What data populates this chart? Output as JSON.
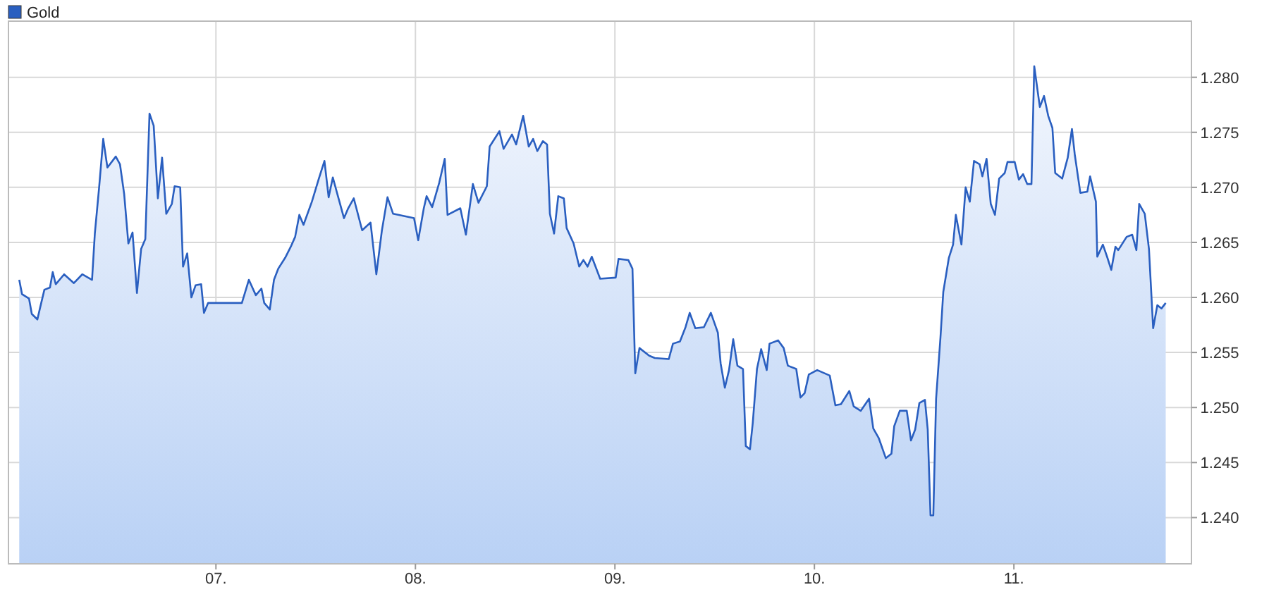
{
  "chart_data": {
    "type": "area",
    "legend": "top left",
    "grid": true,
    "xlim": [
      5.96,
      11.89
    ],
    "ylim": [
      1.2358,
      1.2851
    ],
    "xticks": [
      {
        "value": 7,
        "label": "07."
      },
      {
        "value": 8,
        "label": "08."
      },
      {
        "value": 9,
        "label": "09."
      },
      {
        "value": 10,
        "label": "10."
      },
      {
        "value": 11,
        "label": "11."
      }
    ],
    "yticks": [
      {
        "value": 1.24,
        "label": "1.240"
      },
      {
        "value": 1.245,
        "label": "1.245"
      },
      {
        "value": 1.25,
        "label": "1.250"
      },
      {
        "value": 1.255,
        "label": "1.255"
      },
      {
        "value": 1.26,
        "label": "1.260"
      },
      {
        "value": 1.265,
        "label": "1.265"
      },
      {
        "value": 1.27,
        "label": "1.270"
      },
      {
        "value": 1.275,
        "label": "1.275"
      },
      {
        "value": 1.28,
        "label": "1.280"
      }
    ],
    "series": [
      {
        "name": "Gold",
        "color": "#2a5fc0",
        "x": [
          6.014,
          6.028,
          6.063,
          6.077,
          6.105,
          6.119,
          6.14,
          6.168,
          6.182,
          6.197,
          6.239,
          6.288,
          6.33,
          6.379,
          6.393,
          6.414,
          6.435,
          6.456,
          6.498,
          6.519,
          6.54,
          6.561,
          6.582,
          6.604,
          6.625,
          6.646,
          6.667,
          6.688,
          6.709,
          6.73,
          6.751,
          6.779,
          6.793,
          6.821,
          6.835,
          6.856,
          6.877,
          6.898,
          6.926,
          6.94,
          6.961,
          7.13,
          7.165,
          7.2,
          7.228,
          7.242,
          7.27,
          7.291,
          7.312,
          7.347,
          7.375,
          7.397,
          7.418,
          7.439,
          7.481,
          7.516,
          7.544,
          7.565,
          7.586,
          7.607,
          7.642,
          7.663,
          7.691,
          7.733,
          7.775,
          7.804,
          7.832,
          7.86,
          7.888,
          7.993,
          8.014,
          8.042,
          8.056,
          8.084,
          8.119,
          8.147,
          8.161,
          8.225,
          8.253,
          8.288,
          8.316,
          8.358,
          8.372,
          8.421,
          8.442,
          8.484,
          8.505,
          8.54,
          8.568,
          8.59,
          8.611,
          8.639,
          8.66,
          8.674,
          8.695,
          8.716,
          8.744,
          8.758,
          8.793,
          8.821,
          8.842,
          8.863,
          8.884,
          8.926,
          9.004,
          9.018,
          9.067,
          9.088,
          9.102,
          9.123,
          9.172,
          9.2,
          9.27,
          9.291,
          9.326,
          9.354,
          9.375,
          9.403,
          9.446,
          9.481,
          9.516,
          9.53,
          9.551,
          9.572,
          9.593,
          9.614,
          9.642,
          9.656,
          9.677,
          9.691,
          9.712,
          9.733,
          9.761,
          9.775,
          9.818,
          9.846,
          9.867,
          9.909,
          9.93,
          9.951,
          9.972,
          10.014,
          10.077,
          10.105,
          10.133,
          10.175,
          10.197,
          10.232,
          10.274,
          10.295,
          10.323,
          10.358,
          10.386,
          10.4,
          10.428,
          10.463,
          10.484,
          10.505,
          10.526,
          10.554,
          10.568,
          10.582,
          10.596,
          10.61,
          10.632,
          10.646,
          10.674,
          10.695,
          10.709,
          10.737,
          10.758,
          10.779,
          10.8,
          10.828,
          10.842,
          10.863,
          10.884,
          10.905,
          10.926,
          10.954,
          10.968,
          11.004,
          11.025,
          11.046,
          11.067,
          11.088,
          11.102,
          11.13,
          11.151,
          11.172,
          11.193,
          11.207,
          11.242,
          11.27,
          11.291,
          11.305,
          11.333,
          11.368,
          11.382,
          11.411,
          11.418,
          11.446,
          11.467,
          11.488,
          11.509,
          11.523,
          11.565,
          11.593,
          11.614,
          11.628,
          11.656,
          11.677,
          11.698,
          11.719,
          11.74,
          11.761
        ],
        "values": [
          1.2616,
          1.2603,
          1.2599,
          1.2585,
          1.258,
          1.2591,
          1.2607,
          1.2609,
          1.2623,
          1.2612,
          1.2621,
          1.2613,
          1.2621,
          1.2616,
          1.2658,
          1.2699,
          1.2744,
          1.2718,
          1.2728,
          1.2721,
          1.2694,
          1.2649,
          1.2659,
          1.2604,
          1.2644,
          1.2653,
          1.2767,
          1.2756,
          1.269,
          1.2727,
          1.2676,
          1.2685,
          1.2701,
          1.27,
          1.2628,
          1.264,
          1.26,
          1.2611,
          1.2612,
          1.2586,
          1.2595,
          1.2595,
          1.2616,
          1.2602,
          1.2608,
          1.2595,
          1.2589,
          1.2616,
          1.2626,
          1.2636,
          1.2646,
          1.2655,
          1.2675,
          1.2666,
          1.2687,
          1.2708,
          1.2724,
          1.2691,
          1.2709,
          1.2695,
          1.2672,
          1.2681,
          1.269,
          1.2661,
          1.2668,
          1.2621,
          1.2661,
          1.2691,
          1.2676,
          1.2672,
          1.2652,
          1.2681,
          1.2692,
          1.2682,
          1.2704,
          1.2726,
          1.2675,
          1.2681,
          1.2657,
          1.2703,
          1.2686,
          1.2701,
          1.2737,
          1.2751,
          1.2735,
          1.2748,
          1.2739,
          1.2765,
          1.2737,
          1.2744,
          1.2733,
          1.2742,
          1.2739,
          1.2676,
          1.2658,
          1.2692,
          1.269,
          1.2663,
          1.2649,
          1.2628,
          1.2634,
          1.2628,
          1.2637,
          1.2617,
          1.2618,
          1.2635,
          1.2634,
          1.2626,
          1.2531,
          1.2554,
          1.2547,
          1.2545,
          1.2544,
          1.2558,
          1.256,
          1.2573,
          1.2586,
          1.2572,
          1.2573,
          1.2586,
          1.2568,
          1.254,
          1.2518,
          1.2534,
          1.2562,
          1.2538,
          1.2535,
          1.2465,
          1.2462,
          1.2486,
          1.2535,
          1.2553,
          1.2534,
          1.2558,
          1.2561,
          1.2554,
          1.2538,
          1.2535,
          1.2509,
          1.2513,
          1.253,
          1.2534,
          1.2529,
          1.2502,
          1.2503,
          1.2515,
          1.2501,
          1.2497,
          1.2508,
          1.2481,
          1.2472,
          1.2454,
          1.2458,
          1.2483,
          1.2497,
          1.2497,
          1.247,
          1.248,
          1.2504,
          1.2507,
          1.248,
          1.2402,
          1.2402,
          1.2508,
          1.2564,
          1.2605,
          1.2636,
          1.2648,
          1.2675,
          1.2648,
          1.27,
          1.2687,
          1.2724,
          1.2721,
          1.271,
          1.2726,
          1.2685,
          1.2675,
          1.2708,
          1.2713,
          1.2723,
          1.2723,
          1.2707,
          1.2712,
          1.2703,
          1.2703,
          1.281,
          1.2773,
          1.2783,
          1.2765,
          1.2754,
          1.2713,
          1.2708,
          1.2727,
          1.2753,
          1.273,
          1.2695,
          1.2696,
          1.271,
          1.2687,
          1.2637,
          1.2648,
          1.2637,
          1.2625,
          1.2646,
          1.2643,
          1.2655,
          1.2657,
          1.2643,
          1.2685,
          1.2676,
          1.2644,
          1.2572,
          1.2593,
          1.259,
          1.2595
        ]
      }
    ]
  }
}
